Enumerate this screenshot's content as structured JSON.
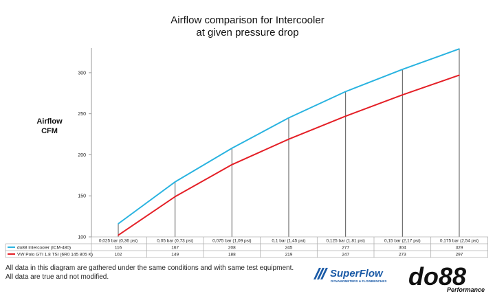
{
  "chart_data": {
    "type": "line",
    "title": [
      "Airflow comparison for Intercooler",
      "at given pressure drop"
    ],
    "ylabel": [
      "Airflow",
      "CFM"
    ],
    "xlabel": "",
    "ylim": [
      100,
      330
    ],
    "yticks": [
      100,
      150,
      200,
      250,
      300
    ],
    "grid": false,
    "legend": "table-left",
    "categories": [
      "0,025 bar (0,36 psi)",
      "0,05 bar (0,73 psi)",
      "0,075 bar (1,09 psi)",
      "0,1 bar (1,45 psi)",
      "0,125 bar (1,81 psi)",
      "0,15 bar (2,17 psi)",
      "0,175 bar (2,54 psi)"
    ],
    "series": [
      {
        "name": "do88 Intercooler (ICM-480)",
        "color": "#29b3e0",
        "values": [
          116,
          167,
          208,
          245,
          277,
          304,
          329
        ]
      },
      {
        "name": "VW Polo GTI 1.8 TSI (6R0 145 805 K)",
        "color": "#e41f26",
        "values": [
          102,
          149,
          188,
          219,
          247,
          273,
          297
        ]
      }
    ]
  },
  "footnote": [
    "All data in this diagram are gathered under the same conditions and with same test equipment.",
    "All data are true and not modified."
  ],
  "logos": {
    "superflow": {
      "name": "SuperFlow",
      "tagline": "DYNAMOMETERS & FLOWBENCHES",
      "color": "#1a5aa6"
    },
    "do88": {
      "name": "do88",
      "tagline": "Performance",
      "color": "#111111"
    }
  }
}
